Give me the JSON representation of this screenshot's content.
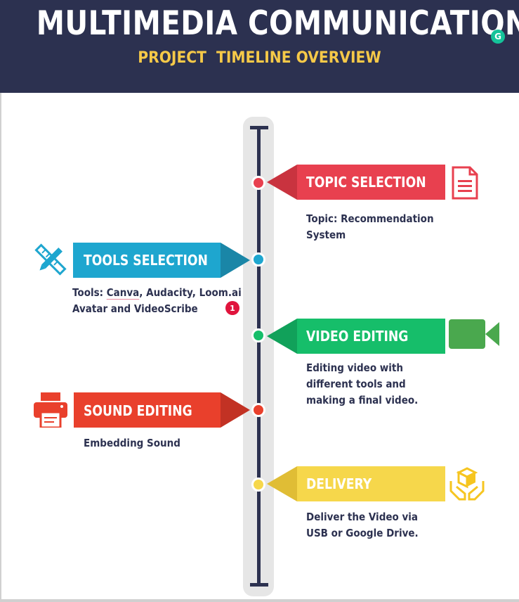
{
  "header": {
    "title": "MULTIMEDIA COMMUNICATION",
    "subtitle": "PROJECT  TIMELINE OVERVIEW"
  },
  "grammarly_badge": {
    "icon": "grammarly-icon",
    "glyph": "G",
    "color": "#15c39a"
  },
  "steps": [
    {
      "label": "TOPIC SELECTION",
      "description": "Topic: Recommendation System",
      "color": "#e8404f",
      "icon": "document-icon"
    },
    {
      "label": "TOOLS SELECTION",
      "description_prefix": "Tools:",
      "description_canva": "Canva",
      "description_rest": ", Audacity, Loom.ai Avatar and VideoScribe",
      "color": "#1ea6cf",
      "icon": "pencil-ruler-icon",
      "spellcheck_count": "1"
    },
    {
      "label": "VIDEO EDITING",
      "description": "Editing video with different tools and making a final video.",
      "color": "#16be6a",
      "icon": "video-camera-icon"
    },
    {
      "label": "SOUND EDITING",
      "description": "Embedding Sound",
      "color": "#e9402c",
      "icon": "printer-icon"
    },
    {
      "label": "DELIVERY",
      "description": "Deliver the Video via USB or Google Drive.",
      "color": "#f6d74b",
      "icon": "hands-box-icon"
    }
  ]
}
